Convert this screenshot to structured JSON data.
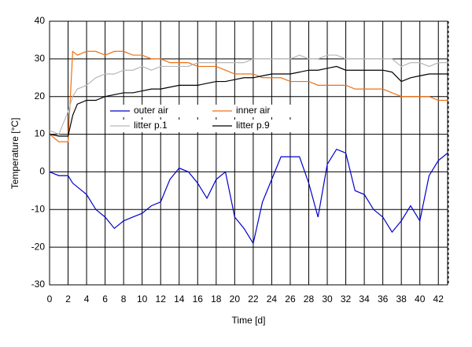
{
  "chart_data": {
    "type": "line",
    "xlabel": "Time [d]",
    "ylabel": "Temperature [°C]",
    "x": [
      0,
      1,
      2,
      2.5,
      3,
      4,
      5,
      6,
      7,
      8,
      9,
      10,
      11,
      12,
      13,
      14,
      15,
      16,
      17,
      18,
      19,
      20,
      21,
      22,
      23,
      24,
      25,
      26,
      27,
      28,
      29,
      30,
      31,
      32,
      33,
      34,
      35,
      36,
      37,
      38,
      39,
      40,
      41,
      42,
      43
    ],
    "series": [
      {
        "name": "outer air",
        "color": "#0000cc",
        "values": [
          0,
          -1,
          -1,
          -3,
          -4,
          -6,
          -10,
          -12,
          -15,
          -13,
          -12,
          -11,
          -9,
          -8,
          -2,
          1,
          0,
          -3,
          -7,
          -2,
          0,
          -12,
          -15,
          -19,
          -8,
          -2,
          4,
          4,
          4,
          -3,
          -12,
          2,
          6,
          5,
          -5,
          -6,
          -10,
          -12,
          -16,
          -13,
          -9,
          -13,
          -1,
          3,
          5
        ]
      },
      {
        "name": "inner air",
        "color": "#f07010",
        "values": [
          10,
          8,
          8,
          32,
          31,
          32,
          32,
          31,
          32,
          32,
          31,
          31,
          30,
          30,
          29,
          29,
          29,
          28,
          28,
          28,
          27,
          26,
          26,
          26,
          25,
          25,
          25,
          24,
          24,
          24,
          23,
          23,
          23,
          23,
          22,
          22,
          22,
          22,
          21,
          20,
          20,
          20,
          20,
          19,
          19
        ]
      },
      {
        "name": "litter p.1",
        "color": "#b8b8b8",
        "values": [
          11,
          10,
          16,
          20,
          22,
          23,
          25,
          26,
          26,
          27,
          27,
          28,
          27,
          28,
          28,
          28,
          28,
          29,
          29,
          29,
          29,
          29,
          29,
          30,
          30,
          30,
          30,
          30,
          31,
          30,
          30,
          31,
          31,
          30,
          30,
          30,
          30,
          30,
          30,
          28,
          29,
          29,
          28,
          29,
          29
        ]
      },
      {
        "name": "litter p.9",
        "color": "#000000",
        "values": [
          10,
          9.5,
          9.5,
          15,
          18,
          19,
          19,
          20,
          20.5,
          21,
          21,
          21.5,
          22,
          22,
          22.5,
          23,
          23,
          23,
          23.5,
          24,
          24,
          24.5,
          25,
          25,
          25.5,
          26,
          26,
          26,
          26.5,
          27,
          27,
          27.5,
          28,
          27,
          27,
          27,
          27,
          27,
          26.5,
          24,
          25,
          25.5,
          26,
          26,
          26
        ]
      }
    ],
    "xlim": [
      0,
      43
    ],
    "xticks": [
      0,
      2,
      4,
      6,
      8,
      10,
      12,
      14,
      16,
      18,
      20,
      22,
      24,
      26,
      28,
      30,
      32,
      34,
      36,
      38,
      40,
      42
    ],
    "ylim": [
      -30,
      40
    ],
    "yticks": [
      -30,
      -20,
      -10,
      0,
      10,
      20,
      30,
      40
    ],
    "grid": true
  }
}
